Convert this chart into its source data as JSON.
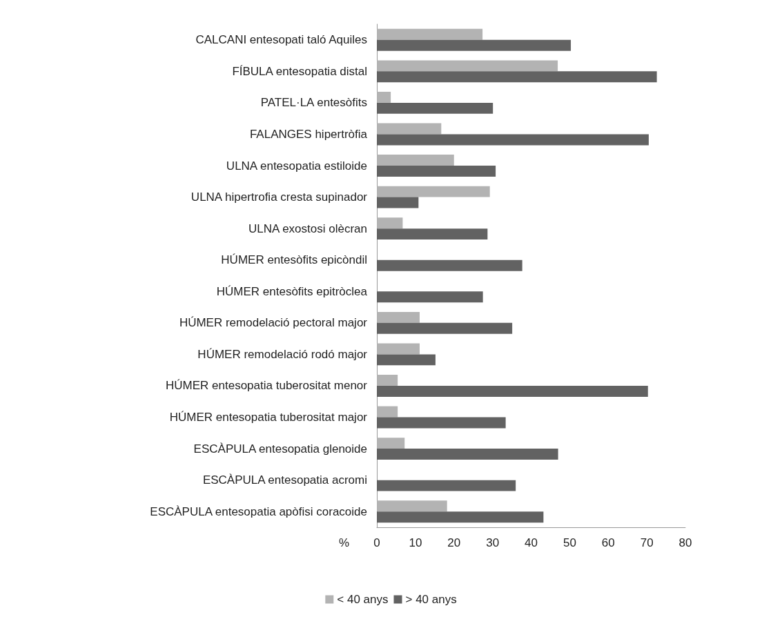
{
  "chart_data": {
    "type": "bar",
    "orientation": "horizontal",
    "xlabel": "%",
    "categories": [
      "CALCANI entesopati taló Aquiles",
      "FÍBULA entesopatia distal",
      "PATEL·LA entesòfits",
      "FALANGES hipertròfia",
      "ULNA entesopatia estiloide",
      "ULNA hipertrofia cresta supinador",
      "ULNA exostosi olècran",
      "HÚMER entesòfits epicòndil",
      "HÚMER entesòfits epitròclea",
      "HÚMER remodelació pectoral major",
      "HÚMER remodelació rodó major",
      "HÚMER entesopatia tuberositat menor",
      "HÚMER entesopatia tuberositat major",
      "ESCÀPULA entesopatia glenoide",
      "ESCÀPULA entesopatia acromi",
      "ESCÀPULA entesopatia apòfisi coracoide"
    ],
    "series": [
      {
        "name": "< 40 anys",
        "color": "#b3b3b3",
        "values": [
          27.4,
          46.9,
          3.6,
          16.7,
          20.0,
          29.3,
          6.7,
          0,
          0,
          11.1,
          11.1,
          5.4,
          5.4,
          7.2,
          0,
          18.2
        ]
      },
      {
        "name": "> 40 anys",
        "color": "#626262",
        "values": [
          50.3,
          72.6,
          30.1,
          70.5,
          30.8,
          10.8,
          28.7,
          37.7,
          27.5,
          35.1,
          15.2,
          70.3,
          33.4,
          47.0,
          36.0,
          43.2
        ]
      }
    ],
    "xlim": [
      0,
      80
    ],
    "xticks": [
      0,
      10,
      20,
      30,
      40,
      50,
      60,
      70,
      80
    ],
    "grid": false,
    "legend": "bottom"
  }
}
